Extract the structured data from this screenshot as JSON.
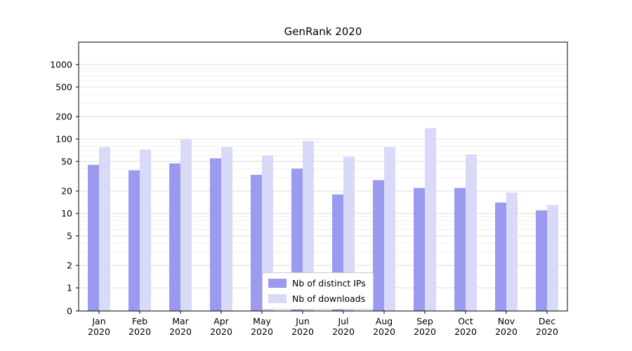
{
  "title": "GenRank 2020",
  "chart_data": {
    "type": "bar",
    "title": "GenRank 2020",
    "categories": [
      "Jan 2020",
      "Feb 2020",
      "Mar 2020",
      "Apr 2020",
      "May 2020",
      "Jun 2020",
      "Jul 2020",
      "Aug 2020",
      "Sep 2020",
      "Oct 2020",
      "Nov 2020",
      "Dec 2020"
    ],
    "series": [
      {
        "name": "Nb of distinct IPs",
        "color": "#9a9bee",
        "values": [
          45,
          38,
          47,
          55,
          33,
          40,
          18,
          28,
          22,
          22,
          14,
          11
        ]
      },
      {
        "name": "Nb of downloads",
        "color": "#d9d9f8",
        "values": [
          78,
          72,
          98,
          78,
          60,
          94,
          58,
          78,
          140,
          62,
          19,
          13
        ]
      }
    ],
    "y_ticks": [
      0,
      1,
      2,
      5,
      10,
      20,
      50,
      100,
      200,
      500,
      1000
    ],
    "y_scale": "symlog",
    "ylim": [
      0,
      1000
    ],
    "xlabel": "",
    "ylabel": "",
    "grid": true,
    "legend_position": "lower center"
  },
  "legend": {
    "item1": "Nb of distinct IPs",
    "item2": "Nb of downloads"
  }
}
